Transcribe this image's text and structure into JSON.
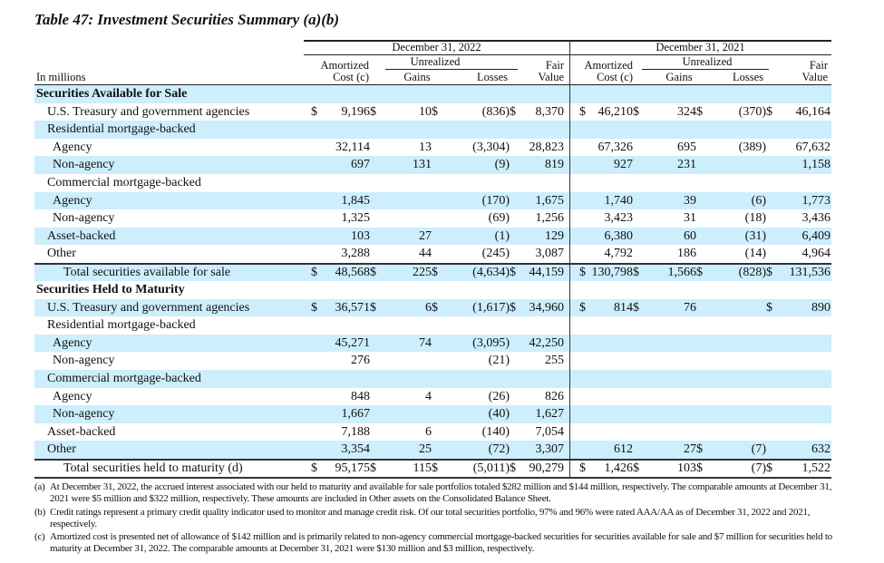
{
  "title": "Table 47: Investment Securities Summary (a)(b)",
  "header": {
    "units": "In millions",
    "periods": [
      "December 31, 2022",
      "December 31, 2021"
    ],
    "unrealized": "Unrealized",
    "amortized_1": "Amortized",
    "amortized_2": "Cost (c)",
    "gains": "Gains",
    "losses": "Losses",
    "fair_1": "Fair",
    "fair_2": "Value"
  },
  "rows": [
    {
      "label": "Securities Available for Sale",
      "level": "l0",
      "cells": []
    },
    {
      "label": "U.S. Treasury and government agencies",
      "level": "l1",
      "cells": [
        [
          "$",
          "9,196"
        ],
        [
          "$",
          "10"
        ],
        [
          "$",
          "(836)"
        ],
        [
          "$",
          "8,370"
        ],
        [
          "$",
          "46,210"
        ],
        [
          "$",
          "324"
        ],
        [
          "$",
          "(370)"
        ],
        [
          "$",
          "46,164"
        ]
      ]
    },
    {
      "label": "Residential mortgage-backed",
      "level": "l1",
      "cells": []
    },
    {
      "label": "Agency",
      "level": "l2",
      "cells": [
        [
          "",
          "32,114"
        ],
        [
          "",
          "13"
        ],
        [
          "",
          "(3,304)"
        ],
        [
          "",
          "28,823"
        ],
        [
          "",
          "67,326"
        ],
        [
          "",
          "695"
        ],
        [
          "",
          "(389)"
        ],
        [
          "",
          "67,632"
        ]
      ]
    },
    {
      "label": "Non-agency",
      "level": "l2",
      "cells": [
        [
          "",
          "697"
        ],
        [
          "",
          "131"
        ],
        [
          "",
          "(9)"
        ],
        [
          "",
          "819"
        ],
        [
          "",
          "927"
        ],
        [
          "",
          "231"
        ],
        [
          "",
          ""
        ],
        [
          "",
          "1,158"
        ]
      ]
    },
    {
      "label": "Commercial mortgage-backed",
      "level": "l1",
      "cells": []
    },
    {
      "label": "Agency",
      "level": "l2",
      "cells": [
        [
          "",
          "1,845"
        ],
        [
          "",
          ""
        ],
        [
          "",
          "(170)"
        ],
        [
          "",
          "1,675"
        ],
        [
          "",
          "1,740"
        ],
        [
          "",
          "39"
        ],
        [
          "",
          "(6)"
        ],
        [
          "",
          "1,773"
        ]
      ]
    },
    {
      "label": "Non-agency",
      "level": "l2",
      "cells": [
        [
          "",
          "1,325"
        ],
        [
          "",
          ""
        ],
        [
          "",
          "(69)"
        ],
        [
          "",
          "1,256"
        ],
        [
          "",
          "3,423"
        ],
        [
          "",
          "31"
        ],
        [
          "",
          "(18)"
        ],
        [
          "",
          "3,436"
        ]
      ]
    },
    {
      "label": "Asset-backed",
      "level": "l1",
      "cells": [
        [
          "",
          "103"
        ],
        [
          "",
          "27"
        ],
        [
          "",
          "(1)"
        ],
        [
          "",
          "129"
        ],
        [
          "",
          "6,380"
        ],
        [
          "",
          "60"
        ],
        [
          "",
          "(31)"
        ],
        [
          "",
          "6,409"
        ]
      ]
    },
    {
      "label": "Other",
      "level": "l1",
      "cells": [
        [
          "",
          "3,288"
        ],
        [
          "",
          "44"
        ],
        [
          "",
          "(245)"
        ],
        [
          "",
          "3,087"
        ],
        [
          "",
          "4,792"
        ],
        [
          "",
          "186"
        ],
        [
          "",
          "(14)"
        ],
        [
          "",
          "4,964"
        ]
      ]
    },
    {
      "label": "Total securities available for sale",
      "level": "lt",
      "total": true,
      "cells": [
        [
          "$",
          "48,568"
        ],
        [
          "$",
          "225"
        ],
        [
          "$",
          "(4,634)"
        ],
        [
          "$",
          "44,159"
        ],
        [
          "$",
          "130,798"
        ],
        [
          "$",
          "1,566"
        ],
        [
          "$",
          "(828)"
        ],
        [
          "$",
          "131,536"
        ]
      ]
    },
    {
      "label": "Securities Held to Maturity",
      "level": "l0",
      "cells": []
    },
    {
      "label": "U.S. Treasury and government agencies",
      "level": "l1",
      "cells": [
        [
          "$",
          "36,571"
        ],
        [
          "$",
          "6"
        ],
        [
          "$",
          "(1,617)"
        ],
        [
          "$",
          "34,960"
        ],
        [
          "$",
          "814"
        ],
        [
          "$",
          "76"
        ],
        [
          "",
          ""
        ],
        [
          "$",
          "890"
        ]
      ]
    },
    {
      "label": "Residential mortgage-backed",
      "level": "l1",
      "cells": []
    },
    {
      "label": "Agency",
      "level": "l2",
      "cells": [
        [
          "",
          "45,271"
        ],
        [
          "",
          "74"
        ],
        [
          "",
          "(3,095)"
        ],
        [
          "",
          "42,250"
        ]
      ]
    },
    {
      "label": "Non-agency",
      "level": "l2",
      "cells": [
        [
          "",
          "276"
        ],
        [
          "",
          ""
        ],
        [
          "",
          "(21)"
        ],
        [
          "",
          "255"
        ]
      ]
    },
    {
      "label": "Commercial mortgage-backed",
      "level": "l1",
      "cells": []
    },
    {
      "label": "Agency",
      "level": "l2",
      "cells": [
        [
          "",
          "848"
        ],
        [
          "",
          "4"
        ],
        [
          "",
          "(26)"
        ],
        [
          "",
          "826"
        ]
      ]
    },
    {
      "label": "Non-agency",
      "level": "l2",
      "cells": [
        [
          "",
          "1,667"
        ],
        [
          "",
          ""
        ],
        [
          "",
          "(40)"
        ],
        [
          "",
          "1,627"
        ]
      ]
    },
    {
      "label": "Asset-backed",
      "level": "l1",
      "cells": [
        [
          "",
          "7,188"
        ],
        [
          "",
          "6"
        ],
        [
          "",
          "(140)"
        ],
        [
          "",
          "7,054"
        ]
      ]
    },
    {
      "label": "Other",
      "level": "l1",
      "cells": [
        [
          "",
          "3,354"
        ],
        [
          "",
          "25"
        ],
        [
          "",
          "(72)"
        ],
        [
          "",
          "3,307"
        ],
        [
          "",
          "612"
        ],
        [
          "",
          "27"
        ],
        [
          "$",
          "(7)"
        ],
        [
          "",
          "632"
        ]
      ]
    },
    {
      "label": "Total securities held to maturity (d)",
      "level": "lt",
      "total": true,
      "last": true,
      "cells": [
        [
          "$",
          "95,175"
        ],
        [
          "$",
          "115"
        ],
        [
          "$",
          "(5,011)"
        ],
        [
          "$",
          "90,279"
        ],
        [
          "$",
          "1,426"
        ],
        [
          "$",
          "103"
        ],
        [
          "$",
          "(7)"
        ],
        [
          "$",
          "1,522"
        ]
      ]
    }
  ],
  "footnotes": [
    {
      "key": "(a)",
      "text": "At December 31, 2022, the accrued interest associated with our held to maturity and available for sale portfolios totaled $282 million and $144 million, respectively. The comparable amounts at December 31, 2021 were $5 million and $322 million, respectively. These amounts are included in Other assets on the Consolidated Balance Sheet."
    },
    {
      "key": "(b)",
      "text": "Credit ratings represent a primary credit quality indicator used to monitor and manage credit risk. Of our total securities portfolio, 97% and 96% were rated AAA/AA as of December 31, 2022 and 2021, respectively."
    },
    {
      "key": "(c)",
      "text": "Amortized cost is presented net of allowance of $142 million and is primarily related to non-agency commercial mortgage-backed securities for securities available for sale and $7 million for securities held to maturity at December 31, 2022. The comparable amounts at December 31, 2021 were $130 million and $3 million, respectively."
    }
  ],
  "colors": {
    "row_shade": "#cdeefc",
    "rule": "#333333"
  }
}
